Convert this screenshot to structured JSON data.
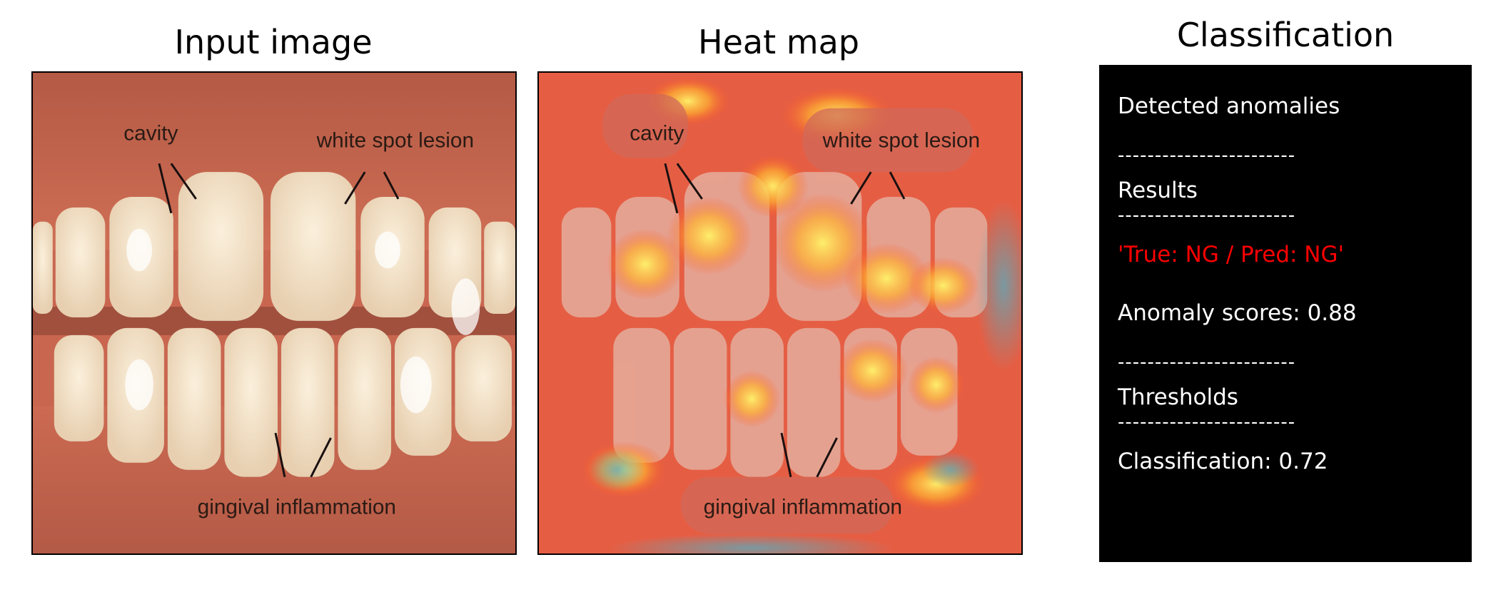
{
  "panels": {
    "input": {
      "title": "Input image"
    },
    "heatmap": {
      "title": "Heat map"
    },
    "classification": {
      "title": "Classification"
    }
  },
  "image_annotations": {
    "cavity": "cavity",
    "white_spot_lesion": "white spot lesion",
    "gingival_inflammation": "gingival inflammation"
  },
  "classification_box": {
    "detected_label": "Detected anomalies",
    "separator": "------------------------",
    "results_label": "Results",
    "result_text": "'True: NG / Pred: NG'",
    "anomaly_score": "Anomaly scores: 0.88",
    "thresholds_label": "Thresholds",
    "classification_threshold": "Classification: 0.72"
  },
  "colors": {
    "result_red": "#ff0000",
    "box_background": "#000000",
    "box_text": "#ffffff"
  }
}
